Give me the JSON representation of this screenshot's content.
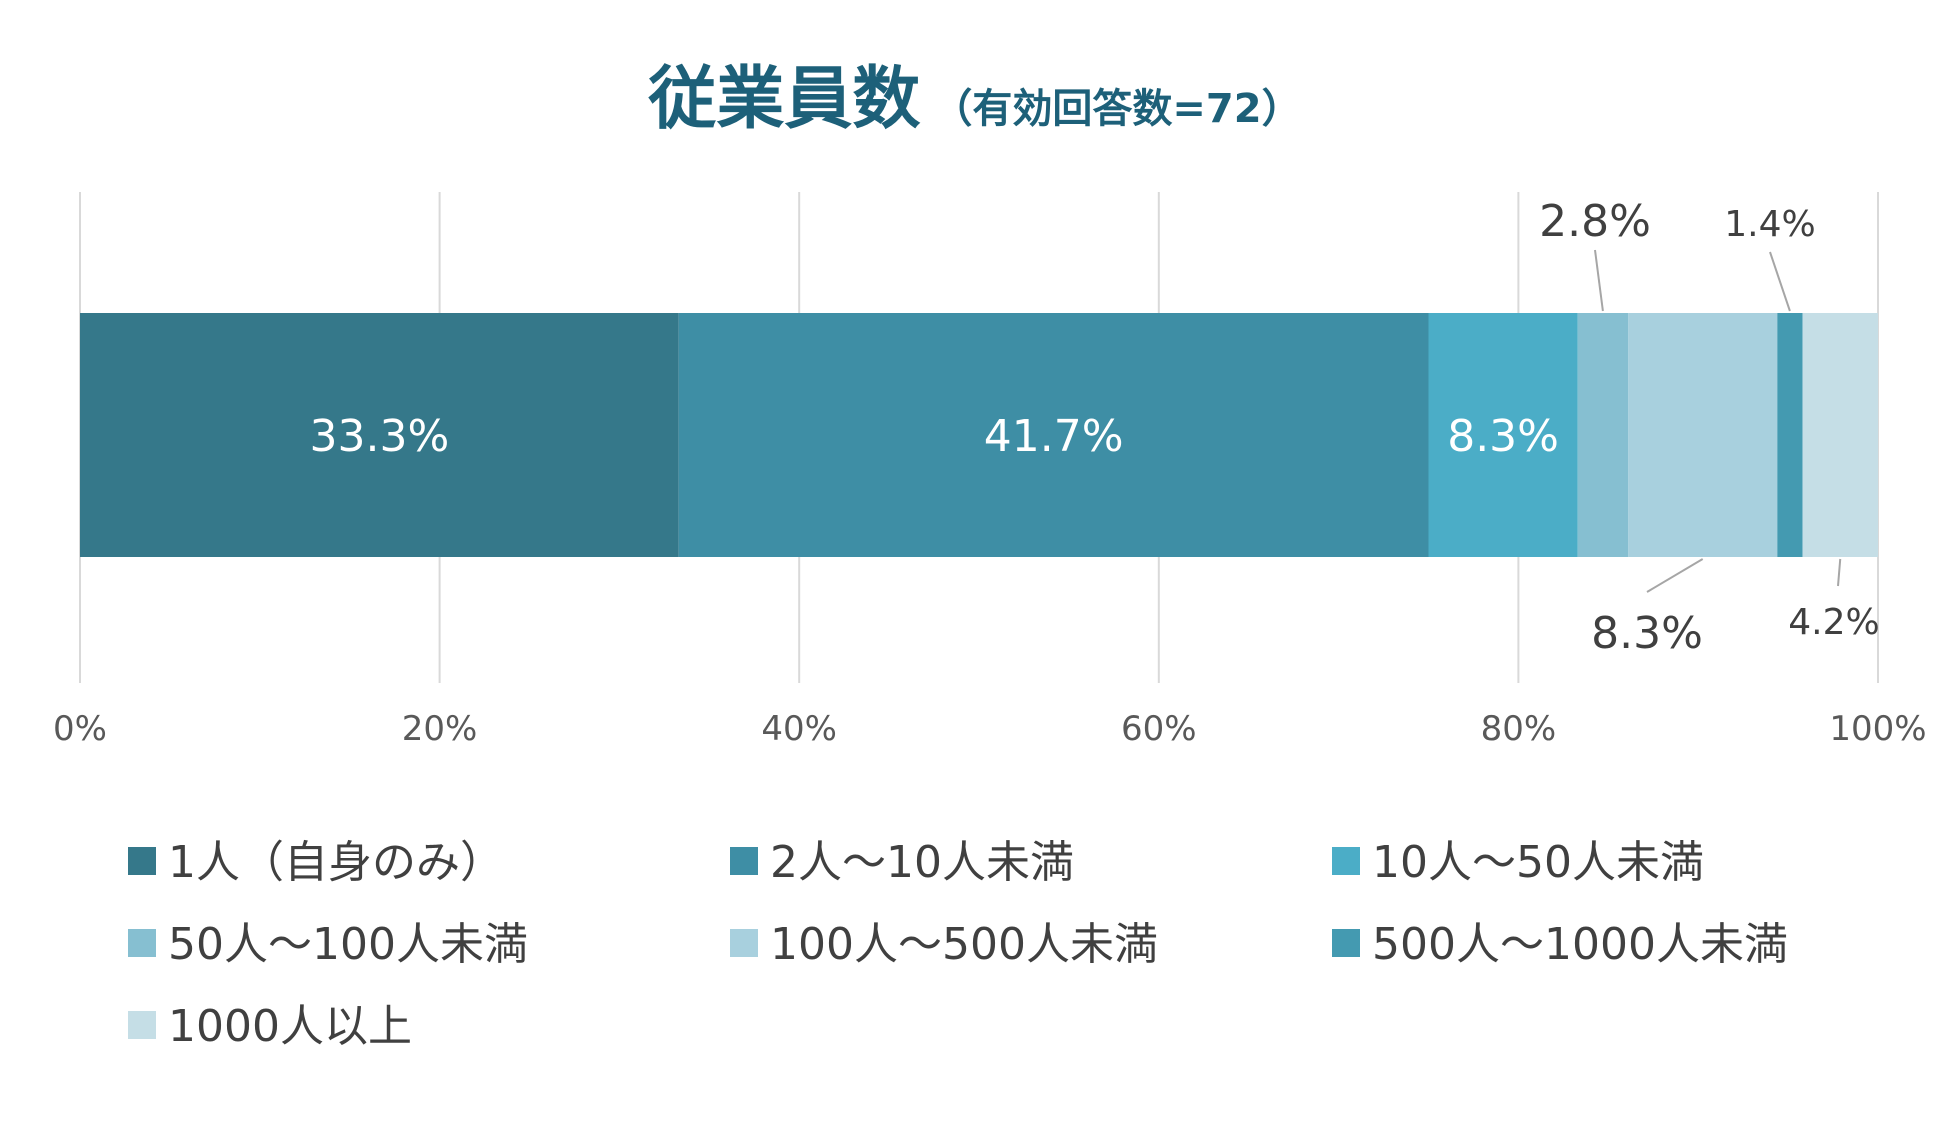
{
  "chart_data": {
    "type": "bar",
    "orientation": "horizontal",
    "stacked": true,
    "title": "従業員数",
    "subtitle": "（有効回答数=72）",
    "categories": [
      ""
    ],
    "series": [
      {
        "name": "1人（自身のみ）",
        "values": [
          33.3
        ],
        "color": "#35788A",
        "label": "33.3%"
      },
      {
        "name": "2人〜10人未満",
        "values": [
          41.7
        ],
        "color": "#3E8EA5",
        "label": "41.7%"
      },
      {
        "name": "10人〜50人未満",
        "values": [
          8.3
        ],
        "color": "#4BADC7",
        "label": "8.3%"
      },
      {
        "name": "50人〜100人未満",
        "values": [
          2.8
        ],
        "color": "#86BFD1",
        "label": "2.8%"
      },
      {
        "name": "100人〜500人未満",
        "values": [
          8.3
        ],
        "color": "#A8D0DE",
        "label": "8.3%"
      },
      {
        "name": "500人〜1000人未満",
        "values": [
          1.4
        ],
        "color": "#449AB1",
        "label": "1.4%"
      },
      {
        "name": "1000人以上",
        "values": [
          4.2
        ],
        "color": "#C5DEE6",
        "label": "4.2%"
      }
    ],
    "xlim": [
      0,
      100
    ],
    "xticks": [
      "0%",
      "20%",
      "40%",
      "60%",
      "80%",
      "100%"
    ],
    "grid": true,
    "legend_position": "bottom",
    "title_color": "#1D6079"
  }
}
